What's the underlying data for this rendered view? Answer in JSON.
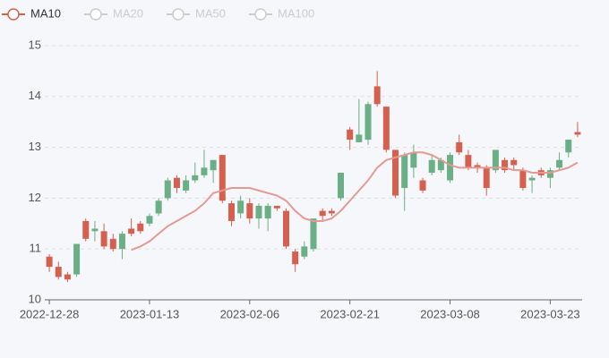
{
  "chart_data": {
    "type": "candlestick",
    "categories": [
      "2022-12-28",
      null,
      null,
      null,
      null,
      null,
      null,
      null,
      null,
      null,
      null,
      "2023-01-13",
      null,
      null,
      null,
      null,
      null,
      null,
      null,
      null,
      null,
      null,
      "2023-02-06",
      null,
      null,
      null,
      null,
      null,
      null,
      null,
      null,
      null,
      null,
      "2023-02-21",
      null,
      null,
      null,
      null,
      null,
      null,
      null,
      null,
      null,
      null,
      "2023-03-08",
      null,
      null,
      null,
      null,
      null,
      null,
      null,
      null,
      null,
      null,
      "2023-03-23",
      null,
      null,
      null
    ],
    "open": [
      10.85,
      10.65,
      10.5,
      10.5,
      11.55,
      11.35,
      11.35,
      11.2,
      11.0,
      11.4,
      11.5,
      11.5,
      11.7,
      12.0,
      12.4,
      12.15,
      12.35,
      12.45,
      12.55,
      12.85,
      11.9,
      11.7,
      11.9,
      11.6,
      11.6,
      11.85,
      11.75,
      10.95,
      10.85,
      11.0,
      11.75,
      11.75,
      12.0,
      13.35,
      13.1,
      13.15,
      14.2,
      13.8,
      12.95,
      12.2,
      12.6,
      12.35,
      12.5,
      12.55,
      12.35,
      13.1,
      12.85,
      12.65,
      12.6,
      12.55,
      12.75,
      12.75,
      12.55,
      12.35,
      12.55,
      12.4,
      12.6,
      12.9,
      13.3
    ],
    "close": [
      10.65,
      10.45,
      10.4,
      11.1,
      11.2,
      11.4,
      11.05,
      11.0,
      11.3,
      11.3,
      11.35,
      11.65,
      11.95,
      12.35,
      12.2,
      12.35,
      12.45,
      12.6,
      12.75,
      11.95,
      11.55,
      11.95,
      11.6,
      11.85,
      11.85,
      11.8,
      11.05,
      10.7,
      11.05,
      11.6,
      11.65,
      11.7,
      12.5,
      13.15,
      13.25,
      13.85,
      13.85,
      12.95,
      12.05,
      12.85,
      12.9,
      12.15,
      12.75,
      12.75,
      12.85,
      12.9,
      12.6,
      12.6,
      12.2,
      12.95,
      12.55,
      12.65,
      12.2,
      12.4,
      12.45,
      12.55,
      12.75,
      13.15,
      13.25
    ],
    "high": [
      10.9,
      10.75,
      10.55,
      11.1,
      11.6,
      11.55,
      11.5,
      11.3,
      11.35,
      11.6,
      11.55,
      11.7,
      12.0,
      12.4,
      12.45,
      12.45,
      12.7,
      12.95,
      12.75,
      12.85,
      11.95,
      12.05,
      12.0,
      11.9,
      11.9,
      11.85,
      11.8,
      11.0,
      11.15,
      11.6,
      11.8,
      11.8,
      12.5,
      13.4,
      13.95,
      13.9,
      14.5,
      13.8,
      12.95,
      12.9,
      13.05,
      12.4,
      12.85,
      12.8,
      12.9,
      13.25,
      12.95,
      12.7,
      12.65,
      12.95,
      12.8,
      12.8,
      12.6,
      12.45,
      12.6,
      12.6,
      12.9,
      13.15,
      13.5
    ],
    "low": [
      10.55,
      10.4,
      10.35,
      10.45,
      11.15,
      11.15,
      11.0,
      10.95,
      10.8,
      11.25,
      11.3,
      11.45,
      11.65,
      11.95,
      12.1,
      12.1,
      12.3,
      12.4,
      12.3,
      11.9,
      11.45,
      11.6,
      11.5,
      11.4,
      11.35,
      11.75,
      11.0,
      10.55,
      10.8,
      10.95,
      11.55,
      11.65,
      11.95,
      12.95,
      13.1,
      13.05,
      13.8,
      12.9,
      12.0,
      11.75,
      12.4,
      12.1,
      12.45,
      12.5,
      12.3,
      12.85,
      12.55,
      12.5,
      12.05,
      12.5,
      12.5,
      12.55,
      12.15,
      12.1,
      12.4,
      12.2,
      12.55,
      12.8,
      13.2
    ],
    "up_color": "#6aaf85",
    "down_color": "#d5604f",
    "series": [
      {
        "name": "MA10",
        "color": "#e39a93",
        "values": [
          null,
          null,
          null,
          null,
          null,
          null,
          null,
          null,
          null,
          10.98,
          11.05,
          11.15,
          11.3,
          11.45,
          11.55,
          11.65,
          11.75,
          11.9,
          12.1,
          12.15,
          12.2,
          12.2,
          12.2,
          12.15,
          12.1,
          12.05,
          11.95,
          11.75,
          11.6,
          11.55,
          11.55,
          11.6,
          11.75,
          11.95,
          12.15,
          12.35,
          12.6,
          12.75,
          12.8,
          12.85,
          12.9,
          12.9,
          12.85,
          12.75,
          12.65,
          12.6,
          12.6,
          12.6,
          12.6,
          12.6,
          12.6,
          12.55,
          12.55,
          12.5,
          12.5,
          12.5,
          12.55,
          12.6,
          12.7
        ]
      }
    ],
    "legend": {
      "items": [
        "MA10",
        "MA20",
        "MA50",
        "MA100"
      ],
      "selected": [
        true,
        false,
        false,
        false
      ],
      "inactive_color": "#cccccc"
    },
    "ylim": [
      10,
      15
    ],
    "yticks": [
      10,
      11,
      12,
      13,
      14,
      15
    ],
    "grid": true
  }
}
